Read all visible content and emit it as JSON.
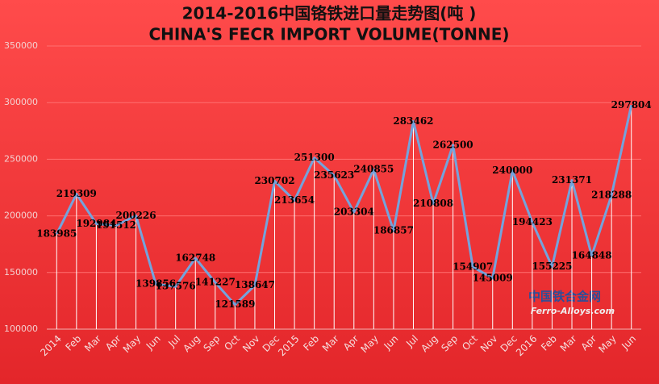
{
  "chart_data": {
    "type": "line",
    "title": "2014-2016中国铬铁进口量走势图(吨 )",
    "subtitle": "CHINA'S FECR IMPORT VOLUME(TONNE)",
    "watermark": "中国铁合金网",
    "watermark_sub": "Ferro-Alloys.com",
    "categories": [
      "2014",
      "Feb",
      "Mar",
      "Apr",
      "May",
      "Jun",
      "Jul",
      "Aug",
      "Sep",
      "Oct",
      "Nov",
      "Dec",
      "2015",
      "Feb",
      "Mar",
      "Apr",
      "May",
      "Jun",
      "Jul",
      "Aug",
      "Sep",
      "Oct",
      "Nov",
      "Dec",
      "2016",
      "Feb",
      "Mar",
      "Apr",
      "May",
      "Jun"
    ],
    "series": [
      {
        "name": "Import volume",
        "color": "#74a3dc",
        "values": [
          183985,
          219309,
          192984,
          191512,
          200226,
          139856,
          137576,
          162748,
          141227,
          121589,
          138647,
          230702,
          213654,
          251300,
          235623,
          203304,
          240855,
          186857,
          283462,
          210808,
          262500,
          154907,
          145009,
          240000,
          194423,
          155225,
          231371,
          164848,
          218288,
          297804
        ]
      }
    ],
    "ylim": [
      100000,
      350000
    ],
    "yticks": [
      100000,
      150000,
      200000,
      250000,
      300000,
      350000
    ],
    "grid": true
  }
}
